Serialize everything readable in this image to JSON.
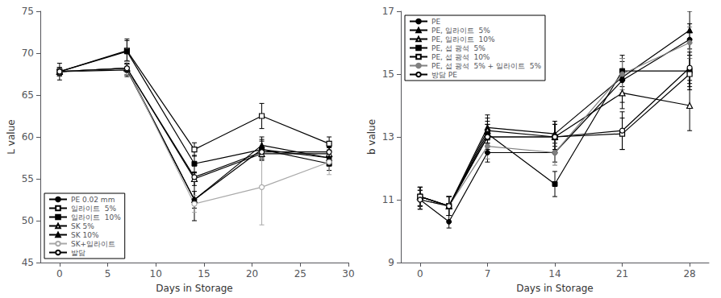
{
  "chart_data": [
    {
      "type": "line",
      "xlabel": "Days in Storage",
      "ylabel": "L value",
      "xlim": [
        -2,
        30
      ],
      "ylim": [
        45,
        75
      ],
      "xticks": [
        0,
        5,
        10,
        15,
        20,
        25,
        30
      ],
      "yticks": [
        45,
        50,
        55,
        60,
        65,
        70,
        75
      ],
      "grid": false,
      "legend": "lower left",
      "x": [
        0,
        7,
        14,
        21,
        28
      ],
      "series": [
        {
          "name": "PE 0.02 mm",
          "color": "black",
          "marker": "circle",
          "line_style": "solid",
          "values": [
            67.8,
            68.0,
            52.5,
            58.5,
            57.5
          ],
          "yerr": [
            1.0,
            0.8,
            2.5,
            1.2,
            0.8
          ]
        },
        {
          "name": "일라이트  5%",
          "color": "black",
          "marker": "open square",
          "line_style": "solid",
          "values": [
            67.8,
            70.3,
            58.5,
            62.5,
            59.2
          ],
          "yerr": [
            0.5,
            1.2,
            0.8,
            1.5,
            0.8
          ]
        },
        {
          "name": "일라이트  10%",
          "color": "black",
          "marker": "square",
          "line_style": "solid",
          "values": [
            67.8,
            70.2,
            56.8,
            58.5,
            56.8
          ],
          "yerr": [
            0.5,
            1.5,
            1.0,
            1.0,
            0.8
          ]
        },
        {
          "name": "SK 5%",
          "color": "black",
          "marker": "open triangle",
          "line_style": "solid",
          "values": [
            67.8,
            68.2,
            55.0,
            58.0,
            58.0
          ],
          "yerr": [
            0.5,
            0.8,
            0.8,
            0.8,
            0.8
          ]
        },
        {
          "name": "SK 10%",
          "color": "black",
          "marker": "triangle",
          "line_style": "solid",
          "values": [
            67.8,
            68.2,
            52.5,
            59.0,
            57.5
          ],
          "yerr": [
            0.5,
            0.8,
            1.0,
            1.0,
            0.8
          ]
        },
        {
          "name": "SK+일라이트",
          "color": "darkgray",
          "marker": "open circle",
          "line_style": "solid",
          "values": [
            67.8,
            68.2,
            52.0,
            54.0,
            57.0
          ],
          "yerr": [
            0.5,
            0.8,
            1.0,
            4.5,
            1.5
          ]
        },
        {
          "name": "발담",
          "color": "black",
          "marker": "open circle",
          "line_style": "solid",
          "values": [
            67.8,
            68.2,
            55.2,
            58.2,
            58.2
          ],
          "yerr": [
            0.5,
            0.5,
            0.5,
            0.5,
            0.5
          ]
        }
      ]
    },
    {
      "type": "line",
      "xlabel": "Days in Storage",
      "ylabel": "b value",
      "xlim": [
        -2,
        30
      ],
      "ylim": [
        9,
        17
      ],
      "xticks": [
        0,
        7,
        14,
        21,
        28
      ],
      "yticks": [
        9,
        11,
        13,
        15,
        17
      ],
      "grid": false,
      "legend": "upper left",
      "x": [
        0,
        3,
        7,
        14,
        21,
        28
      ],
      "series": [
        {
          "name": "PE",
          "color": "black",
          "marker": "circle",
          "line_style": "solid",
          "values": [
            11.0,
            10.3,
            12.5,
            12.5,
            14.8,
            16.1
          ],
          "yerr": [
            0.3,
            0.2,
            0.3,
            0.3,
            0.7,
            0.5
          ]
        },
        {
          "name": "PE, 일라이트  5%",
          "color": "black",
          "marker": "triangle",
          "line_style": "solid",
          "values": [
            11.1,
            10.8,
            13.3,
            13.1,
            14.9,
            16.4
          ],
          "yerr": [
            0.3,
            0.3,
            0.4,
            0.4,
            0.5,
            0.6
          ]
        },
        {
          "name": "PE, 일라이트  10%",
          "color": "black",
          "marker": "open triangle",
          "line_style": "solid",
          "values": [
            11.1,
            10.8,
            13.2,
            13.0,
            14.4,
            14.0
          ],
          "yerr": [
            0.3,
            0.3,
            0.4,
            0.4,
            0.5,
            0.8
          ]
        },
        {
          "name": "PE, 섭 광석  5%",
          "color": "black",
          "marker": "square",
          "line_style": "solid",
          "values": [
            11.1,
            10.8,
            13.1,
            11.5,
            15.1,
            15.1
          ],
          "yerr": [
            0.3,
            0.3,
            0.4,
            0.4,
            0.5,
            0.5
          ]
        },
        {
          "name": "PE, 섭 광석  10%",
          "color": "black",
          "marker": "open square",
          "line_style": "solid",
          "values": [
            11.1,
            10.8,
            13.0,
            13.0,
            13.1,
            15.0
          ],
          "yerr": [
            0.3,
            0.3,
            0.4,
            0.5,
            0.5,
            0.5
          ]
        },
        {
          "name": "PE, 섭 광석  5% + 일라이트  5%",
          "color": "gray",
          "marker": "circle",
          "line_style": "solid",
          "values": [
            11.0,
            10.8,
            12.7,
            12.5,
            15.0,
            16.0
          ],
          "yerr": [
            0.3,
            0.3,
            0.4,
            0.4,
            0.5,
            0.5
          ]
        },
        {
          "name": "방담 PE",
          "color": "black",
          "marker": "open circle",
          "line_style": "solid",
          "values": [
            11.0,
            10.8,
            13.0,
            13.0,
            13.2,
            15.2
          ],
          "yerr": [
            0.3,
            0.3,
            0.4,
            0.4,
            0.6,
            0.5
          ]
        }
      ]
    }
  ]
}
